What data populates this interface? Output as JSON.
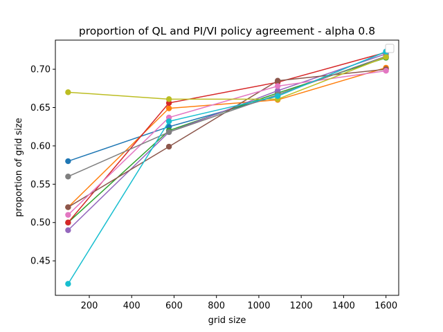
{
  "chart_data": {
    "type": "line",
    "title": "proportion of QL and PI/VI policy agreement - alpha 0.8",
    "xlabel": "grid size",
    "ylabel": "proportion of grid size",
    "xlim": [
      40,
      1660
    ],
    "ylim": [
      0.405,
      0.738
    ],
    "x_ticks": [
      200,
      400,
      600,
      800,
      1000,
      1200,
      1400,
      1600
    ],
    "y_ticks": [
      0.45,
      0.5,
      0.55,
      0.6,
      0.65,
      0.7
    ],
    "x_tick_labels": [
      "200",
      "400",
      "600",
      "800",
      "1000",
      "1200",
      "1400",
      "1600"
    ],
    "y_tick_labels": [
      "0.45",
      "0.50",
      "0.55",
      "0.60",
      "0.65",
      "0.70"
    ],
    "grid": false,
    "legend": {
      "position": "top-right",
      "entries": []
    },
    "x": [
      100,
      576,
      1089,
      1600
    ],
    "series": [
      {
        "color": "#1f77b4",
        "values": [
          0.58,
          0.625,
          0.665,
          0.723
        ]
      },
      {
        "color": "#ff7f0e",
        "values": [
          0.52,
          0.649,
          0.66,
          0.702
        ]
      },
      {
        "color": "#2ca02c",
        "values": [
          0.5,
          0.62,
          0.669,
          0.715
        ]
      },
      {
        "color": "#d62728",
        "values": [
          0.5,
          0.656,
          0.683,
          0.722
        ]
      },
      {
        "color": "#9467bd",
        "values": [
          0.49,
          0.618,
          0.672,
          0.72
        ]
      },
      {
        "color": "#8c564b",
        "values": [
          0.52,
          0.599,
          0.685,
          0.7
        ]
      },
      {
        "color": "#e377c2",
        "values": [
          0.51,
          0.637,
          0.678,
          0.698
        ]
      },
      {
        "color": "#7f7f7f",
        "values": [
          0.56,
          0.618,
          0.667,
          0.717
        ]
      },
      {
        "color": "#bcbd22",
        "values": [
          0.67,
          0.661,
          0.661,
          0.716
        ]
      },
      {
        "color": "#17becf",
        "values": [
          0.42,
          0.632,
          0.665,
          0.723
        ]
      }
    ]
  }
}
